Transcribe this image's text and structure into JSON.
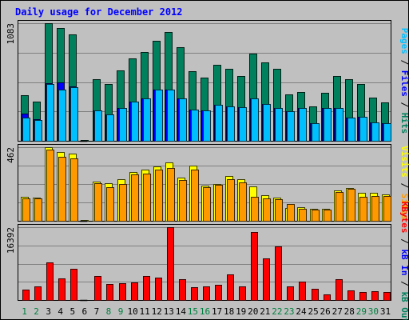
{
  "chart_data": {
    "type": "bar",
    "title": "Daily usage for December 2012",
    "x": [
      "1",
      "2",
      "3",
      "4",
      "5",
      "6",
      "7",
      "8",
      "9",
      "10",
      "11",
      "12",
      "13",
      "14",
      "15",
      "16",
      "17",
      "18",
      "19",
      "20",
      "21",
      "22",
      "23",
      "24",
      "25",
      "26",
      "27",
      "28",
      "29",
      "30",
      "31"
    ],
    "weekend_days": [
      1,
      2,
      8,
      9,
      15,
      16,
      22,
      23,
      29,
      30
    ],
    "panels": [
      {
        "id": "hits",
        "max_label": "1083",
        "ylim": [
          0,
          1083
        ],
        "series": [
          {
            "name": "Hits",
            "color": "#00805c",
            "values": [
              420,
              360,
              1083,
              1040,
              980,
              5,
              570,
              520,
              650,
              760,
              820,
              920,
              1000,
              860,
              640,
              580,
              700,
              660,
              600,
              800,
              720,
              660,
              430,
              450,
              320,
              440,
              600,
              570,
              520,
              400,
              350
            ]
          },
          {
            "name": "Files",
            "color": "#0000ff",
            "values": [
              250,
              200,
              530,
              540,
              500,
              3,
              280,
              240,
              300,
              360,
              390,
              470,
              470,
              390,
              290,
              280,
              330,
              320,
              310,
              390,
              340,
              300,
              270,
              300,
              160,
              300,
              300,
              210,
              220,
              170,
              160
            ]
          },
          {
            "name": "Pages",
            "color": "#00bfff",
            "values": [
              210,
              195,
              520,
              470,
              490,
              0,
              280,
              240,
              300,
              360,
              390,
              470,
              470,
              390,
              290,
              280,
              330,
              320,
              310,
              390,
              340,
              300,
              270,
              300,
              160,
              300,
              300,
              210,
              220,
              170,
              160
            ]
          }
        ],
        "axis_labels": [
          {
            "text": "Pages",
            "color": "#00bfff"
          },
          {
            "text": " / ",
            "color": "#000000"
          },
          {
            "text": "Files",
            "color": "#0000ff"
          },
          {
            "text": " / ",
            "color": "#000000"
          },
          {
            "text": "Hits",
            "color": "#00805c"
          }
        ]
      },
      {
        "id": "visits",
        "max_label": "462",
        "ylim": [
          0,
          462
        ],
        "series": [
          {
            "name": "Visits",
            "color": "#ffff00",
            "values": [
              150,
              145,
              462,
              430,
              420,
              3,
              245,
              235,
              260,
              305,
              320,
              340,
              365,
              270,
              345,
              220,
              230,
              282,
              259,
              214,
              160,
              148,
              81,
              83,
              73,
              74,
              190,
              204,
              175,
              174,
              164
            ]
          },
          {
            "name": "Sites",
            "color": "#ff9900",
            "values": [
              141,
              141,
              448,
              404,
              393,
              0,
              238,
              212,
              231,
              291,
              298,
              319,
              329,
              258,
              319,
              212,
              224,
              259,
              240,
              153,
              142,
              134,
              106,
              75,
              68,
              69,
              180,
              200,
              150,
              157,
              155
            ]
          }
        ],
        "axis_labels": [
          {
            "text": "Visits",
            "color": "#ffff00"
          },
          {
            "text": " / ",
            "color": "#000000"
          },
          {
            "text": "Sites",
            "color": "#ff9900"
          }
        ]
      },
      {
        "id": "kbytes",
        "max_label": "16392",
        "ylim": [
          0,
          16392
        ],
        "series": [
          {
            "name": "KBytes",
            "color": "#ff0000",
            "values": [
              2270,
              3110,
              8440,
              4890,
              6980,
              0,
              5340,
              3540,
              3780,
              3990,
              5430,
              5120,
              16392,
              4710,
              2890,
              3110,
              3410,
              5710,
              3110,
              15400,
              9310,
              12000,
              3110,
              4160,
              2470,
              1200,
              4600,
              2140,
              1850,
              1900,
              1740
            ]
          }
        ],
        "axis_labels": [
          {
            "text": "KBytes",
            "color": "#ff0000"
          },
          {
            "text": " / ",
            "color": "#000000"
          },
          {
            "text": "kB In",
            "color": "#0000ff"
          },
          {
            "text": " / ",
            "color": "#000000"
          },
          {
            "text": "kB Out",
            "color": "#00805c"
          }
        ]
      }
    ]
  },
  "colors": {
    "background": "#c0c0c0",
    "title": "#0000ff",
    "weekday_label": "#000000",
    "weekend_label": "#008040",
    "gridline": "#808080"
  }
}
